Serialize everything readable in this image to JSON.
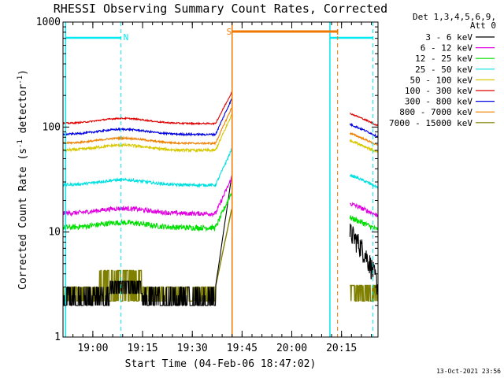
{
  "chart_data": {
    "type": "line",
    "title": "RHESSI Observing Summary Count Rates, Corrected",
    "xlabel": "Start Time (04-Feb-06 18:47:02)",
    "ylabel_parts": [
      "Corrected Count Rate (s",
      "-1",
      " detector",
      "-1",
      ")"
    ],
    "y_scale": "log",
    "ylim": [
      1,
      1000
    ],
    "y_ticks": [
      {
        "value": 1,
        "label": "1"
      },
      {
        "value": 10,
        "label": "10"
      },
      {
        "value": 100,
        "label": "100"
      },
      {
        "value": 1000,
        "label": "1000"
      }
    ],
    "x_ticks": [
      {
        "minutes": 63,
        "label": "19:00"
      },
      {
        "minutes": 78,
        "label": "19:15"
      },
      {
        "minutes": 93,
        "label": "19:30"
      },
      {
        "minutes": 108,
        "label": "19:45"
      },
      {
        "minutes": 123,
        "label": "20:00"
      },
      {
        "minutes": 138,
        "label": "20:15"
      }
    ],
    "x_range_minutes": [
      54,
      149
    ],
    "legend_header": [
      "Det 1,3,4,5,6,9,",
      "Att 0"
    ],
    "timestamp": "13-Oct-2021 23:56",
    "gaps": [
      [
        105,
        140.5
      ]
    ],
    "series": [
      {
        "name": "3 - 6 keV",
        "color": "#000000",
        "kind": "ch1"
      },
      {
        "name": "6 - 12 keV",
        "color": "#e000e0",
        "kind": "flat",
        "level": 15,
        "noise": 0.05
      },
      {
        "name": "12 - 25 keV",
        "color": "#00e000",
        "kind": "flat",
        "level": 11,
        "noise": 0.06
      },
      {
        "name": "25 - 50 keV",
        "color": "#00e0e0",
        "kind": "flat",
        "level": 28,
        "noise": 0.03
      },
      {
        "name": "50 - 100 keV",
        "color": "#d8c800",
        "kind": "flat",
        "level": 60,
        "noise": 0.03
      },
      {
        "name": "100 - 300 keV",
        "color": "#e00000",
        "kind": "flat",
        "level": 108,
        "noise": 0.015
      },
      {
        "name": "300 - 800 keV",
        "color": "#0000e0",
        "kind": "flat",
        "level": 85,
        "noise": 0.02
      },
      {
        "name": "800 - 7000 keV",
        "color": "#f08000",
        "kind": "flat",
        "level": 70,
        "noise": 0.02
      },
      {
        "name": "7000 - 15000 keV",
        "color": "#808000",
        "kind": "att"
      }
    ],
    "annotations": {
      "night_lines": [
        54.8,
        71.5,
        134.5,
        147.5
      ],
      "night_bars": [
        [
          54.8,
          71.5
        ],
        [
          134.5,
          147.5
        ]
      ],
      "night_label": {
        "text": "N",
        "minutes": 72.2
      },
      "saa_line": 105,
      "saa_bar": [
        105,
        136.8
      ],
      "saa_end_dashed": 136.8,
      "saa_label": {
        "text": "S",
        "minutes": 103.3
      }
    },
    "colors": {
      "night": "#00e8f0",
      "saa": "#f07800",
      "axes": "#000000",
      "background": "#ffffff"
    }
  }
}
